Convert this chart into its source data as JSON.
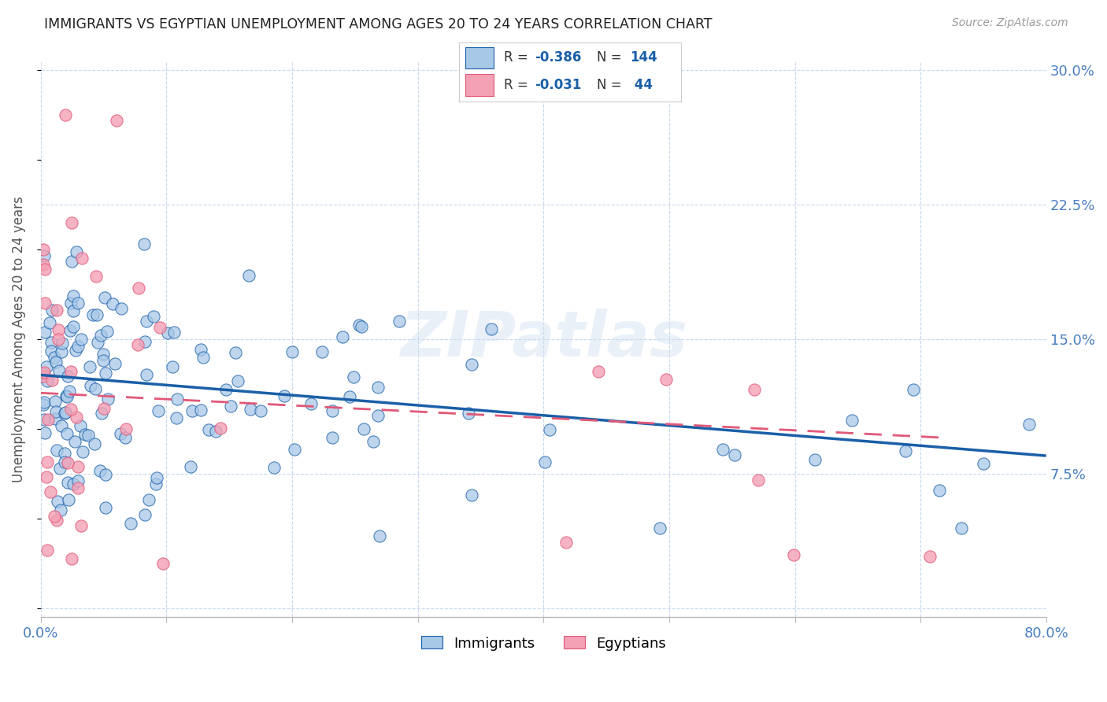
{
  "title": "IMMIGRANTS VS EGYPTIAN UNEMPLOYMENT AMONG AGES 20 TO 24 YEARS CORRELATION CHART",
  "source": "Source: ZipAtlas.com",
  "ylabel": "Unemployment Among Ages 20 to 24 years",
  "xlim": [
    0.0,
    0.8
  ],
  "ylim": [
    -0.005,
    0.305
  ],
  "xticks": [
    0.0,
    0.1,
    0.2,
    0.3,
    0.4,
    0.5,
    0.6,
    0.7,
    0.8
  ],
  "xticklabels": [
    "0.0%",
    "",
    "",
    "",
    "",
    "",
    "",
    "",
    "80.0%"
  ],
  "yticks_right": [
    0.0,
    0.075,
    0.15,
    0.225,
    0.3
  ],
  "yticklabels_right": [
    "",
    "7.5%",
    "15.0%",
    "22.5%",
    "30.0%"
  ],
  "color_immigrants": "#a8c8e8",
  "color_egyptians": "#f4a0b5",
  "color_line_immigrants": "#1a5fa8",
  "color_line_egyptians": "#e05878",
  "background_color": "#ffffff",
  "grid_color": "#c8d8ec",
  "watermark": "ZIPatlas",
  "title_color": "#222222",
  "axis_label_color": "#555555",
  "tick_label_color": "#4a7fc1",
  "source_color": "#999999"
}
